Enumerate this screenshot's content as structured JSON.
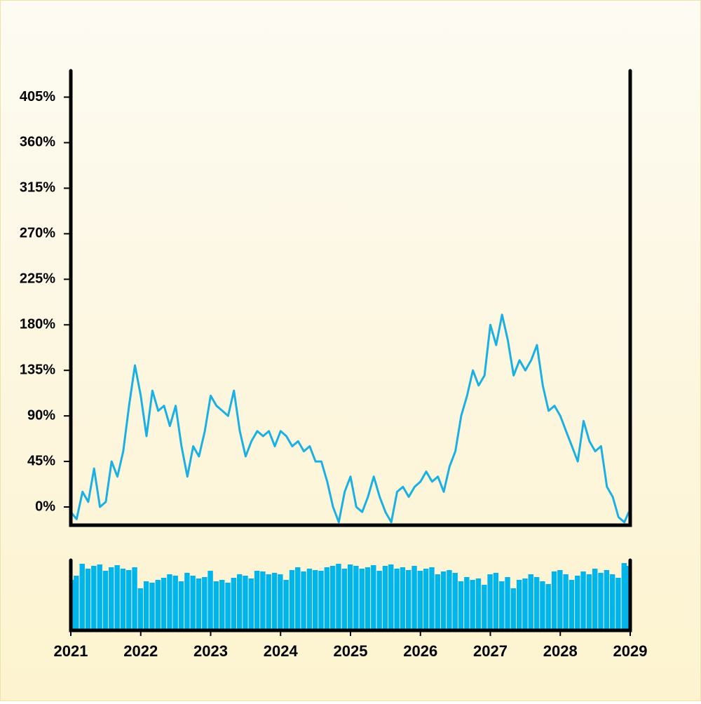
{
  "chart_data": [
    {
      "type": "line",
      "color": "#1ab0e4",
      "x": [
        2021,
        2021.083,
        2021.167,
        2021.25,
        2021.333,
        2021.417,
        2021.5,
        2021.583,
        2021.667,
        2021.75,
        2021.833,
        2021.917,
        2022,
        2022.083,
        2022.167,
        2022.25,
        2022.333,
        2022.417,
        2022.5,
        2022.583,
        2022.667,
        2022.75,
        2022.833,
        2022.917,
        2023,
        2023.083,
        2023.167,
        2023.25,
        2023.333,
        2023.417,
        2023.5,
        2023.583,
        2023.667,
        2023.75,
        2023.833,
        2023.917,
        2024,
        2024.083,
        2024.167,
        2024.25,
        2024.333,
        2024.417,
        2024.5,
        2024.583,
        2024.667,
        2024.75,
        2024.833,
        2024.917,
        2025,
        2025.083,
        2025.167,
        2025.25,
        2025.333,
        2025.417,
        2025.5,
        2025.583,
        2025.667,
        2025.75,
        2025.833,
        2025.917,
        2026,
        2026.083,
        2026.167,
        2026.25,
        2026.333,
        2026.417,
        2026.5,
        2026.583,
        2026.667,
        2026.75,
        2026.833,
        2026.917,
        2027,
        2027.083,
        2027.167,
        2027.25,
        2027.333,
        2027.417,
        2027.5,
        2027.583,
        2027.667,
        2027.75,
        2027.833,
        2027.917,
        2028,
        2028.083,
        2028.167,
        2028.25,
        2028.333,
        2028.417,
        2028.5,
        2028.583,
        2028.667,
        2028.75,
        2028.833,
        2028.917,
        2028.98
      ],
      "values": [
        -5,
        -12,
        15,
        5,
        38,
        0,
        5,
        45,
        30,
        55,
        100,
        140,
        110,
        70,
        115,
        95,
        100,
        80,
        100,
        60,
        30,
        60,
        50,
        75,
        110,
        100,
        95,
        90,
        115,
        75,
        50,
        65,
        75,
        70,
        75,
        60,
        75,
        70,
        60,
        65,
        55,
        60,
        45,
        45,
        25,
        0,
        -15,
        15,
        30,
        0,
        -5,
        10,
        30,
        10,
        -5,
        -15,
        15,
        20,
        10,
        20,
        25,
        35,
        25,
        30,
        15,
        40,
        55,
        90,
        110,
        135,
        120,
        130,
        180,
        160,
        190,
        165,
        130,
        145,
        135,
        145,
        160,
        120,
        95,
        100,
        90,
        75,
        60,
        45,
        85,
        65,
        55,
        60,
        20,
        10,
        -10,
        -15,
        -5
      ],
      "xlim": [
        2021,
        2029
      ],
      "ylim": [
        -18,
        431
      ],
      "yticks": [
        {
          "value": 0,
          "label": "0%"
        },
        {
          "value": 45,
          "label": "45%"
        },
        {
          "value": 90,
          "label": "90%"
        },
        {
          "value": 135,
          "label": "135%"
        },
        {
          "value": 180,
          "label": "180%"
        },
        {
          "value": 225,
          "label": "225%"
        },
        {
          "value": 270,
          "label": "270%"
        },
        {
          "value": 315,
          "label": "315%"
        },
        {
          "value": 360,
          "label": "360%"
        },
        {
          "value": 405,
          "label": "405%"
        }
      ]
    },
    {
      "type": "bar",
      "color": "#00b4ec",
      "x": [
        2021,
        2021.083,
        2021.167,
        2021.25,
        2021.333,
        2021.417,
        2021.5,
        2021.583,
        2021.667,
        2021.75,
        2021.833,
        2021.917,
        2022,
        2022.083,
        2022.167,
        2022.25,
        2022.333,
        2022.417,
        2022.5,
        2022.583,
        2022.667,
        2022.75,
        2022.833,
        2022.917,
        2023,
        2023.083,
        2023.167,
        2023.25,
        2023.333,
        2023.417,
        2023.5,
        2023.583,
        2023.667,
        2023.75,
        2023.833,
        2023.917,
        2024,
        2024.083,
        2024.167,
        2024.25,
        2024.333,
        2024.417,
        2024.5,
        2024.583,
        2024.667,
        2024.75,
        2024.833,
        2024.917,
        2025,
        2025.083,
        2025.167,
        2025.25,
        2025.333,
        2025.417,
        2025.5,
        2025.583,
        2025.667,
        2025.75,
        2025.833,
        2025.917,
        2026,
        2026.083,
        2026.167,
        2026.25,
        2026.333,
        2026.417,
        2026.5,
        2026.583,
        2026.667,
        2026.75,
        2026.833,
        2026.917,
        2027,
        2027.083,
        2027.167,
        2027.25,
        2027.333,
        2027.417,
        2027.5,
        2027.583,
        2027.667,
        2027.75,
        2027.833,
        2027.917,
        2028,
        2028.083,
        2028.167,
        2028.25,
        2028.333,
        2028.417,
        2028.5,
        2028.583,
        2028.667,
        2028.75,
        2028.833,
        2028.917,
        2028.98
      ],
      "values": [
        72,
        78,
        95,
        88,
        92,
        94,
        85,
        90,
        93,
        88,
        86,
        90,
        60,
        70,
        68,
        72,
        75,
        80,
        78,
        70,
        82,
        78,
        74,
        76,
        85,
        70,
        72,
        68,
        75,
        80,
        78,
        74,
        85,
        84,
        80,
        82,
        80,
        72,
        86,
        90,
        84,
        88,
        86,
        85,
        90,
        92,
        95,
        88,
        94,
        92,
        88,
        90,
        93,
        85,
        92,
        94,
        88,
        90,
        86,
        92,
        85,
        88,
        90,
        80,
        84,
        86,
        82,
        70,
        76,
        72,
        74,
        65,
        80,
        82,
        70,
        76,
        60,
        72,
        74,
        80,
        76,
        70,
        66,
        84,
        86,
        80,
        72,
        78,
        84,
        80,
        88,
        82,
        86,
        80,
        75,
        96,
        92
      ],
      "xlim": [
        2021,
        2029
      ],
      "ylim": [
        0,
        100
      ],
      "xticks": [
        2021,
        2022,
        2023,
        2024,
        2025,
        2026,
        2027,
        2028,
        2029
      ]
    }
  ]
}
